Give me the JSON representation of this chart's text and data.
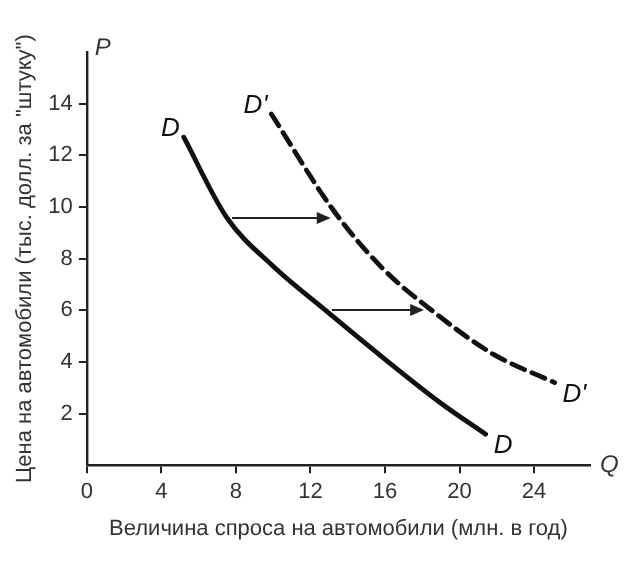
{
  "chart_data": {
    "type": "line",
    "xlabel": "Величина спроса на автомобили (млн. в год)",
    "ylabel": "Цена на автомобили (тыс. долл. за \"штуку\")",
    "annotations": [
      "P",
      "Q"
    ],
    "xlim": [
      0,
      27
    ],
    "xticks": [
      0,
      4,
      8,
      12,
      16,
      20,
      24
    ],
    "ylim": [
      0,
      16
    ],
    "yticks": [
      2,
      4,
      6,
      8,
      10,
      12,
      14
    ],
    "grid": false,
    "legend": false,
    "marker": "none",
    "series": [
      {
        "name": "D",
        "color": "#111111",
        "line_style": "solid",
        "x": [
          5.2,
          7.5,
          10,
          12.8,
          16,
          19,
          21.4
        ],
        "values": [
          12.7,
          9.6,
          7.7,
          6,
          4.1,
          2.4,
          1.2
        ]
      },
      {
        "name": "D'",
        "color": "#111111",
        "line_style": "dashed",
        "x": [
          9.9,
          13.2,
          15.9,
          18.5,
          21.8,
          25.1
        ],
        "values": [
          13.6,
          9.9,
          7.6,
          6,
          4.3,
          3.2
        ]
      }
    ]
  }
}
